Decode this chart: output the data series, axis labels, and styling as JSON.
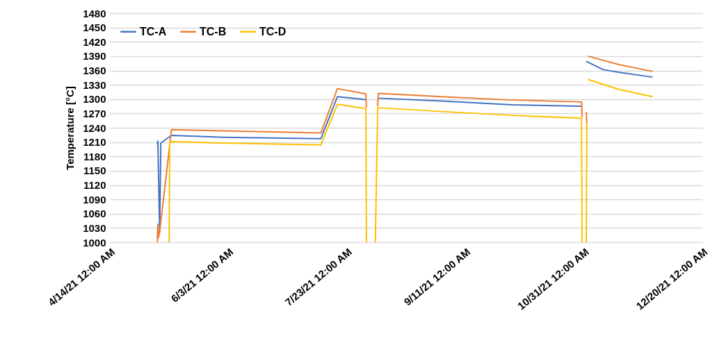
{
  "chart_data": {
    "type": "line",
    "ylabel": "Temperature [°C]",
    "xlim": [
      "2021-04-14",
      "2021-12-20"
    ],
    "xticks": [
      {
        "value": "2021-04-14",
        "label": "4/14/21 12:00 AM"
      },
      {
        "value": "2021-06-03",
        "label": "6/3/21 12:00 AM"
      },
      {
        "value": "2021-07-23",
        "label": "7/23/21 12:00 AM"
      },
      {
        "value": "2021-09-11",
        "label": "9/11/21 12:00 AM"
      },
      {
        "value": "2021-10-31",
        "label": "10/31/21 12:00 AM"
      },
      {
        "value": "2021-12-20",
        "label": "12/20/21 12:00 AM"
      }
    ],
    "ylim": [
      1000,
      1480
    ],
    "yticks": [
      1000,
      1030,
      1060,
      1090,
      1120,
      1150,
      1180,
      1210,
      1240,
      1270,
      1300,
      1330,
      1360,
      1390,
      1420,
      1450,
      1480
    ],
    "grid": "y",
    "legend": "top left",
    "line_style": "solid",
    "series": [
      {
        "name": "TC-A",
        "color": "#4472c4",
        "x": [
          "2021-05-04T00:00",
          "2021-05-04T06:00",
          "2021-05-05T00:00",
          "2021-05-05T12:00",
          "2021-05-10",
          "2021-06-01",
          "2021-07-12",
          "2021-07-19",
          "2021-07-31",
          "2021-08-01",
          "2021-08-05",
          "2021-09-01",
          "2021-10-01",
          "2021-10-30",
          "2021-10-31",
          "2021-11-01",
          "2021-11-08",
          "2021-11-15",
          "2021-11-29"
        ],
        "values": [
          1205,
          1212,
          1022,
          1208,
          1224,
          1220,
          1217,
          1305,
          1299,
          null,
          1302,
          1296,
          1288,
          1285,
          null,
          1379,
          1362,
          1356,
          1346
        ]
      },
      {
        "name": "TC-B",
        "color": "#ed7d31",
        "x": [
          "2021-05-04T00:00",
          "2021-05-04T06:00",
          "2021-05-04T12:00",
          "2021-05-05T00:00",
          "2021-05-10",
          "2021-07-12",
          "2021-07-19",
          "2021-07-31T00:00",
          "2021-07-31T06:00",
          "2021-08-01",
          "2021-08-05T00:00",
          "2021-08-05T06:00",
          "2021-09-01",
          "2021-10-01",
          "2021-10-30T00:00",
          "2021-10-30T06:00",
          "2021-10-31",
          "2021-11-01T00:00",
          "2021-11-01T06:00",
          "2021-11-01T12:00",
          "2021-11-01T18:00",
          "2021-11-15",
          "2021-11-29"
        ],
        "values": [
          1000,
          1038,
          1010,
          1022,
          1236,
          1229,
          1322,
          1311,
          1282,
          null,
          1285,
          1312,
          1305,
          1298,
          1294,
          1262,
          null,
          1273,
          1249,
          null,
          1390,
          1372,
          1358
        ]
      },
      {
        "name": "TC-D",
        "color": "#ffc000",
        "x": [
          "2021-05-09T00:00",
          "2021-05-09T06:00",
          "2021-06-01",
          "2021-07-12",
          "2021-07-19",
          "2021-07-31T00:00",
          "2021-07-31T06:00",
          "2021-08-02",
          "2021-08-04",
          "2021-08-05",
          "2021-09-01",
          "2021-10-01",
          "2021-10-30T00:00",
          "2021-10-30T06:00",
          "2021-10-31",
          "2021-11-01T00:00",
          "2021-11-01T06:00",
          "2021-11-01T12:00",
          "2021-11-01T18:00",
          "2021-11-15",
          "2021-11-29"
        ],
        "values": [
          1000,
          1211,
          1208,
          1204,
          1289,
          1280,
          1000,
          null,
          1000,
          1282,
          1274,
          1266,
          1260,
          1000,
          null,
          1000,
          1249,
          null,
          1341,
          1320,
          1305
        ]
      }
    ]
  }
}
